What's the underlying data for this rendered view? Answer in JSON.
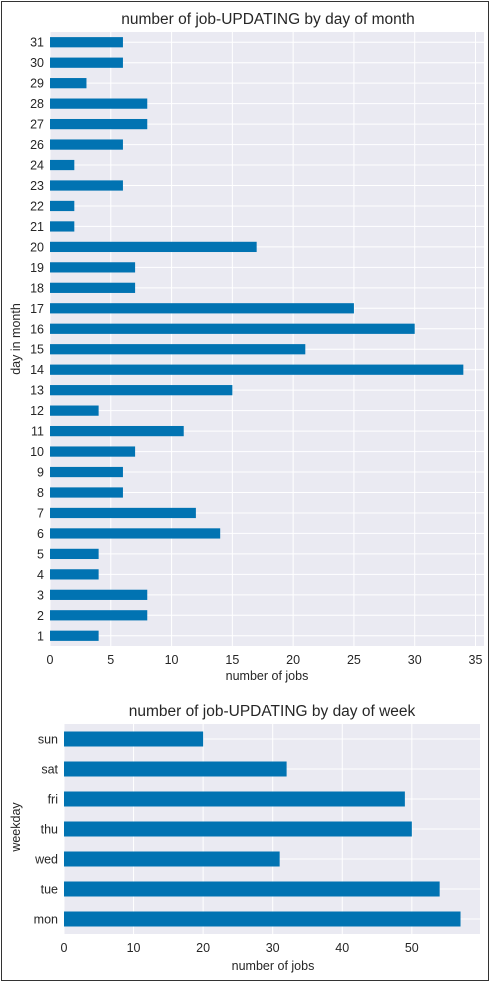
{
  "colors": {
    "bar": "#0173b2",
    "plot_background": "#eaeaf2",
    "grid": "#ffffff",
    "text": "#262626",
    "frame": "#333333"
  },
  "chart_data": [
    {
      "type": "bar",
      "orientation": "horizontal",
      "title": "number of job-UPDATING by day of month",
      "xlabel": "number of jobs",
      "ylabel": "day in month",
      "xlim": [
        0,
        35.7
      ],
      "xticks": [
        "0",
        "5",
        "10",
        "15",
        "20",
        "25",
        "30",
        "35"
      ],
      "grid": true,
      "categories": [
        "31",
        "30",
        "29",
        "28",
        "27",
        "26",
        "24",
        "23",
        "22",
        "21",
        "20",
        "19",
        "18",
        "17",
        "16",
        "15",
        "14",
        "13",
        "12",
        "11",
        "10",
        "9",
        "8",
        "7",
        "6",
        "5",
        "4",
        "3",
        "2",
        "1"
      ],
      "values": [
        6,
        6,
        3,
        8,
        8,
        6,
        2,
        6,
        2,
        2,
        17,
        7,
        7,
        25,
        30,
        21,
        34,
        15,
        4,
        11,
        7,
        6,
        6,
        12,
        14,
        4,
        4,
        8,
        8,
        4
      ]
    },
    {
      "type": "bar",
      "orientation": "horizontal",
      "title": "number of job-UPDATING by day of week",
      "xlabel": "number of jobs",
      "ylabel": "weekday",
      "xlim": [
        0,
        59.8
      ],
      "xticks": [
        "0",
        "10",
        "20",
        "30",
        "40",
        "50"
      ],
      "grid": true,
      "categories": [
        "sun",
        "sat",
        "fri",
        "thu",
        "wed",
        "tue",
        "mon"
      ],
      "values": [
        20,
        32,
        49,
        50,
        31,
        54,
        57
      ]
    }
  ]
}
